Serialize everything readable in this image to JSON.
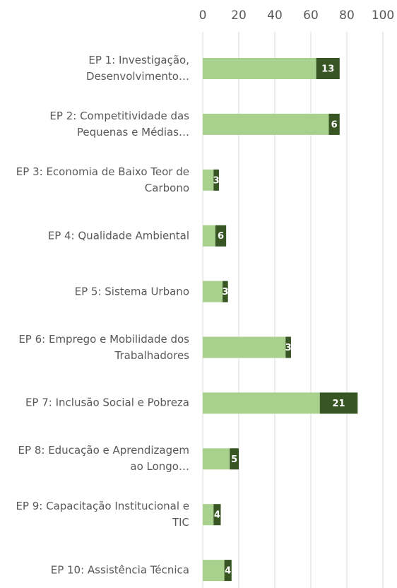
{
  "chart_data": {
    "type": "stacked_barh",
    "categories": [
      "EP 1: Investigação, Desenvolvimento…",
      "EP 2: Competitividade das Pequenas e Médias…",
      "EP 3: Economia de Baixo Teor de Carbono",
      "EP 4: Qualidade Ambiental",
      "EP 5: Sistema Urbano",
      "EP 6: Emprego e Mobilidade dos Trabalhadores",
      "EP 7: Inclusão Social e Pobreza",
      "EP 8: Educação e Aprendizagem ao Longo…",
      "EP 9: Capacitação Institucional e TIC",
      "EP 10: Assistência Técnica"
    ],
    "series": [
      {
        "color": "#a9d18e",
        "values": [
          63,
          70,
          6,
          7,
          11,
          46,
          65,
          15,
          6,
          12
        ]
      },
      {
        "color": "#375623",
        "values": [
          13,
          6,
          3,
          6,
          3,
          3,
          21,
          5,
          4,
          4
        ]
      }
    ],
    "xlim": [
      0,
      100
    ],
    "xticks": [
      0,
      20,
      40,
      60,
      80,
      100
    ],
    "grid": true
  }
}
